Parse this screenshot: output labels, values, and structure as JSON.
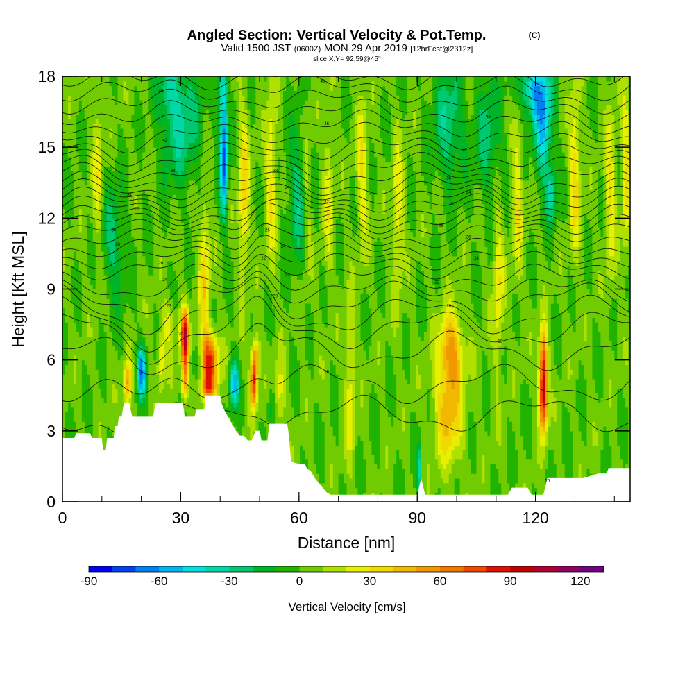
{
  "header": {
    "title": "Angled Section: Vertical Velocity & Pot.Temp.",
    "title_unit": "(C)",
    "valid_prefix": "Valid 1500 JST",
    "valid_utc": "(0600Z)",
    "valid_date": "MON 29 Apr 2019",
    "forecast": "[12hrFcst@2312z]",
    "slice": "slice X,Y= 92,59@45°"
  },
  "chart_data": {
    "type": "heatmap",
    "xlabel": "Distance [nm]",
    "ylabel": "Height [Kft MSL]",
    "xlim": [
      0,
      144
    ],
    "ylim": [
      0,
      18
    ],
    "x_ticks": [
      0,
      30,
      60,
      90,
      120
    ],
    "x_tick_labels": [
      "0",
      "30",
      "60",
      "90",
      "120"
    ],
    "y_ticks": [
      0,
      3,
      6,
      9,
      12,
      15,
      18
    ],
    "y_tick_labels": [
      "0",
      "3",
      "6",
      "9",
      "12",
      "15",
      "18"
    ],
    "colorbar": {
      "label": "Vertical Velocity [cm/s]",
      "min": -90,
      "max": 130,
      "step": 10,
      "tick_values": [
        -90,
        -60,
        -30,
        0,
        30,
        60,
        90,
        120
      ],
      "tick_labels": [
        "-90",
        "-60",
        "-30",
        "0",
        "30",
        "60",
        "90",
        "120"
      ],
      "colors": [
        "#0000f0",
        "#0040f0",
        "#0080f0",
        "#00b4f0",
        "#00e0e0",
        "#00d8a8",
        "#00c870",
        "#00b428",
        "#20b400",
        "#70cc00",
        "#b0e000",
        "#e8f000",
        "#f0d800",
        "#f0b800",
        "#f09800",
        "#f07800",
        "#f04800",
        "#e01000",
        "#c00000",
        "#b00030",
        "#900060",
        "#700080"
      ]
    },
    "terrain": [
      [
        0,
        2.7
      ],
      [
        3,
        2.7
      ],
      [
        3.5,
        2.9
      ],
      [
        7,
        2.9
      ],
      [
        7.5,
        2.7
      ],
      [
        10,
        2.7
      ],
      [
        10.3,
        2.2
      ],
      [
        11,
        2.2
      ],
      [
        11.3,
        2.7
      ],
      [
        13,
        2.7
      ],
      [
        13.3,
        3.2
      ],
      [
        14,
        3.2
      ],
      [
        14.3,
        3.6
      ],
      [
        15,
        3.6
      ],
      [
        15.3,
        3.9
      ],
      [
        15.6,
        4.2
      ],
      [
        17,
        4.2
      ],
      [
        17.3,
        3.9
      ],
      [
        17.7,
        3.6
      ],
      [
        23,
        3.6
      ],
      [
        23.3,
        3.9
      ],
      [
        23.7,
        4.2
      ],
      [
        30.5,
        4.2
      ],
      [
        30.8,
        3.9
      ],
      [
        31,
        3.6
      ],
      [
        33.5,
        3.6
      ],
      [
        34,
        3.9
      ],
      [
        36,
        3.9
      ],
      [
        36.3,
        4.5
      ],
      [
        40,
        4.5
      ],
      [
        40.3,
        4.2
      ],
      [
        41,
        3.9
      ],
      [
        42,
        3.6
      ],
      [
        43,
        3.3
      ],
      [
        44,
        3.0
      ],
      [
        45,
        2.8
      ],
      [
        46,
        2.8
      ],
      [
        47,
        2.6
      ],
      [
        48,
        2.6
      ],
      [
        49,
        3.0
      ],
      [
        50,
        3.0
      ],
      [
        50.5,
        2.6
      ],
      [
        52,
        2.6
      ],
      [
        52.5,
        3.3
      ],
      [
        57,
        3.3
      ],
      [
        57.3,
        3.0
      ],
      [
        58,
        1.7
      ],
      [
        60,
        1.6
      ],
      [
        61.5,
        1.6
      ],
      [
        62,
        1.4
      ],
      [
        63,
        1.3
      ],
      [
        64,
        1.0
      ],
      [
        65,
        0.8
      ],
      [
        66,
        0.6
      ],
      [
        67,
        0.4
      ],
      [
        68,
        0.3
      ],
      [
        90,
        0.3
      ],
      [
        91,
        1.0
      ],
      [
        92,
        0.3
      ],
      [
        113,
        0.3
      ],
      [
        114,
        0.6
      ],
      [
        118,
        0.6
      ],
      [
        119,
        0.3
      ],
      [
        122,
        0.3
      ],
      [
        123,
        1.0
      ],
      [
        132,
        1.0
      ],
      [
        136,
        1.2
      ],
      [
        138,
        1.2
      ],
      [
        138.5,
        1.4
      ],
      [
        144,
        1.4
      ]
    ],
    "isentrope_labels": [
      {
        "x": 25,
        "y": 17.4,
        "text": "48"
      },
      {
        "x": 66,
        "y": 17.8,
        "text": "48"
      },
      {
        "x": 108,
        "y": 16.3,
        "text": "46"
      },
      {
        "x": 67,
        "y": 16.0,
        "text": "46"
      },
      {
        "x": 26,
        "y": 15.3,
        "text": "42"
      },
      {
        "x": 102,
        "y": 14.9,
        "text": "42"
      },
      {
        "x": 28,
        "y": 14.0,
        "text": "38"
      },
      {
        "x": 54,
        "y": 14.0,
        "text": "38"
      },
      {
        "x": 98,
        "y": 13.7,
        "text": "36"
      },
      {
        "x": 57,
        "y": 13.3,
        "text": "34"
      },
      {
        "x": 17,
        "y": 13.0,
        "text": "34"
      },
      {
        "x": 103,
        "y": 13.1,
        "text": "34"
      },
      {
        "x": 19,
        "y": 12.4,
        "text": "32"
      },
      {
        "x": 67,
        "y": 12.7,
        "text": "32"
      },
      {
        "x": 99,
        "y": 12.6,
        "text": "30"
      },
      {
        "x": 96,
        "y": 11.7,
        "text": "28"
      },
      {
        "x": 13,
        "y": 11.5,
        "text": "30"
      },
      {
        "x": 52,
        "y": 11.5,
        "text": "26"
      },
      {
        "x": 103,
        "y": 11.2,
        "text": "26"
      },
      {
        "x": 14,
        "y": 10.9,
        "text": "28"
      },
      {
        "x": 56,
        "y": 10.8,
        "text": "24"
      },
      {
        "x": 105,
        "y": 10.3,
        "text": "24"
      },
      {
        "x": 25,
        "y": 10.1,
        "text": "26"
      },
      {
        "x": 51,
        "y": 10.3,
        "text": "22"
      },
      {
        "x": 26,
        "y": 9.4,
        "text": "24"
      },
      {
        "x": 57,
        "y": 9.6,
        "text": "22"
      },
      {
        "x": 95,
        "y": 9.3,
        "text": "22"
      },
      {
        "x": 54,
        "y": 8.7,
        "text": "20"
      },
      {
        "x": 27,
        "y": 8.3,
        "text": "22"
      },
      {
        "x": 98,
        "y": 8.3,
        "text": "20"
      },
      {
        "x": 30,
        "y": 7.1,
        "text": "20"
      },
      {
        "x": 63,
        "y": 6.9,
        "text": "18"
      },
      {
        "x": 111,
        "y": 6.8,
        "text": "18"
      },
      {
        "x": 67,
        "y": 5.5,
        "text": "16"
      },
      {
        "x": 123,
        "y": 0.9,
        "text": "16"
      }
    ]
  }
}
